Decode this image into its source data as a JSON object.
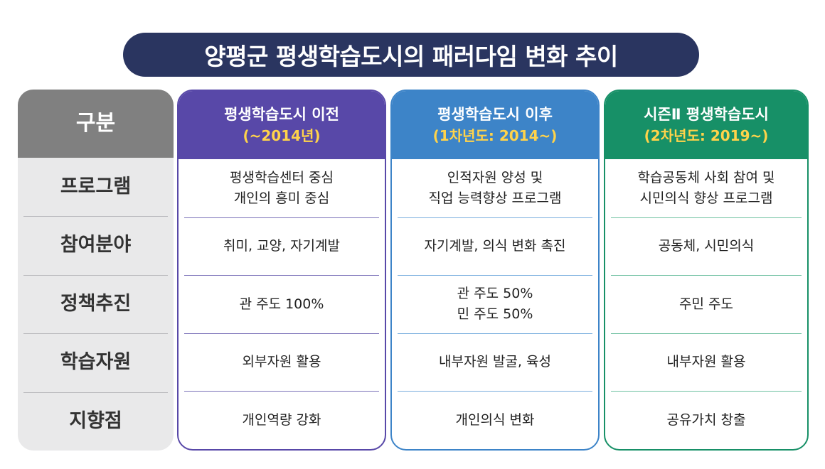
{
  "title": "양평군 평생학습도시의 패러다임 변화 추이",
  "label_header": "구분",
  "row_labels": [
    "프로그램",
    "참여분야",
    "정책추진",
    "학습자원",
    "지향점"
  ],
  "columns": [
    {
      "header": "평생학습도시 이전",
      "subheader": "(~2014년)",
      "color": "#5848a8",
      "cells": [
        [
          "평생학습센터 중심",
          "개인의 흥미 중심"
        ],
        [
          "취미, 교양, 자기계발"
        ],
        [
          "관 주도 100%"
        ],
        [
          "외부자원 활용"
        ],
        [
          "개인역량 강화"
        ]
      ]
    },
    {
      "header": "평생학습도시 이후",
      "subheader": "(1차년도: 2014~)",
      "color": "#3d84c8",
      "cells": [
        [
          "인적자원 양성 및",
          "직업 능력향상 프로그램"
        ],
        [
          "자기계발, 의식 변화 촉진"
        ],
        [
          "관 주도 50%",
          "민 주도 50%"
        ],
        [
          "내부자원 발굴, 육성"
        ],
        [
          "개인의식 변화"
        ]
      ]
    },
    {
      "header": "시즌Ⅱ 평생학습도시",
      "subheader": "(2차년도: 2019~)",
      "color": "#179067",
      "cells": [
        [
          "학습공동체 사회 참여 및",
          "시민의식 향상 프로그램"
        ],
        [
          "공동체, 시민의식"
        ],
        [
          "주민 주도"
        ],
        [
          "내부자원 활용"
        ],
        [
          "공유가치 창출"
        ]
      ]
    }
  ]
}
